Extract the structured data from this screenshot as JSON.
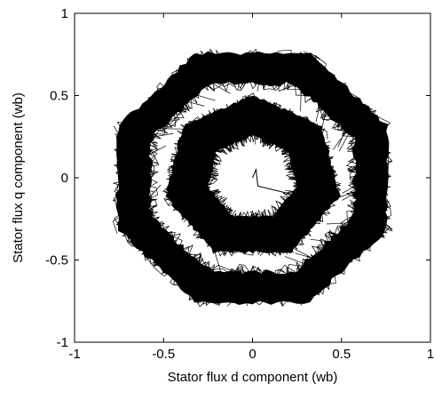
{
  "chart_data": {
    "type": "line",
    "xlabel": "Stator flux d component (wb)",
    "ylabel": "Stator flux q component (wb)",
    "xlim": [
      -1,
      1
    ],
    "ylim": [
      -1,
      1
    ],
    "x_ticks": [
      -1,
      -0.5,
      0,
      0.5,
      1
    ],
    "y_ticks": [
      -1,
      -0.5,
      0,
      0.5,
      1
    ],
    "x_tick_labels": [
      "-1",
      "-0.5",
      "0",
      "0.5",
      "1"
    ],
    "y_tick_labels": [
      "-1",
      "-0.5",
      "0",
      "0.5",
      "1"
    ],
    "grid": false,
    "legend": "none",
    "line_color": "#000000",
    "series": [
      {
        "description_of_shape": "stator flux trajectory",
        "rings": [
          {
            "shape": "octagon",
            "inner_radius": 0.62,
            "outer_radius": 0.82,
            "rotation_deg": 22.5
          },
          {
            "shape": "heptagon",
            "inner_radius": 0.26,
            "outer_radius": 0.5,
            "rotation_deg": 90
          }
        ],
        "startup_path": [
          [
            0,
            0
          ],
          [
            0.02,
            0.05
          ],
          [
            0.03,
            -0.05
          ],
          [
            0.22,
            -0.1
          ]
        ]
      }
    ]
  }
}
